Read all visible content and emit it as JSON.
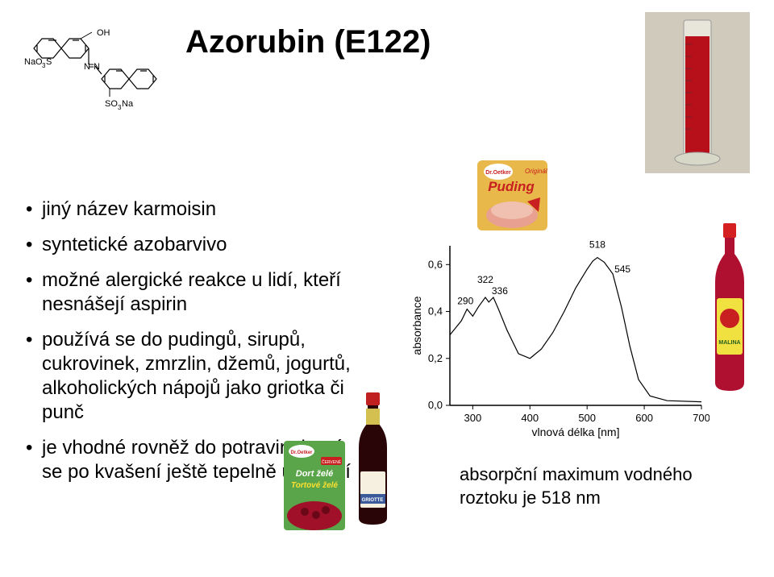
{
  "title": "Azorubin (E122)",
  "chem_labels": {
    "nao3s": "NaO",
    "sub3": "3",
    "s": "S",
    "oh": "OH",
    "nn": "N N",
    "so3na": "SO",
    "na": "Na"
  },
  "bullets": [
    "jiný název karmoisin",
    "syntetické azobarvivo",
    "možné alergické reakce u lidí, kteří nesnášejí aspirin",
    "používá se do pudingů, sirupů, cukrovinek, zmrzlin, džemů, jogurtů, alkoholických nápojů jako griotka či punč",
    "je vhodné rovněž do potravin, která se po kvašení ještě tepelně upravují"
  ],
  "caption": "absorpční maximum vodného roztoku je 518 nm",
  "chart": {
    "type": "line",
    "ylabel": "absorbance",
    "xlabel": "vlnová délka [nm]",
    "xlim": [
      260,
      700
    ],
    "ylim": [
      0,
      0.68
    ],
    "yticks": [
      0.0,
      0.2,
      0.4,
      0.6
    ],
    "xticks": [
      300,
      400,
      500,
      600,
      700
    ],
    "line_color": "#000000",
    "line_width": 1.2,
    "background_color": "#ffffff",
    "axis_color": "#000000",
    "label_fontsize": 14,
    "tick_fontsize": 13,
    "peaks": [
      {
        "x": 290,
        "label": "290"
      },
      {
        "x": 322,
        "label": "322"
      },
      {
        "x": 336,
        "label": "336"
      },
      {
        "x": 518,
        "label": "518"
      },
      {
        "x": 545,
        "label": "545"
      }
    ],
    "curve": [
      [
        260,
        0.3
      ],
      [
        270,
        0.33
      ],
      [
        280,
        0.36
      ],
      [
        290,
        0.41
      ],
      [
        300,
        0.38
      ],
      [
        310,
        0.42
      ],
      [
        322,
        0.46
      ],
      [
        328,
        0.44
      ],
      [
        336,
        0.46
      ],
      [
        345,
        0.41
      ],
      [
        360,
        0.32
      ],
      [
        380,
        0.22
      ],
      [
        400,
        0.2
      ],
      [
        420,
        0.24
      ],
      [
        440,
        0.31
      ],
      [
        460,
        0.4
      ],
      [
        480,
        0.5
      ],
      [
        500,
        0.58
      ],
      [
        510,
        0.615
      ],
      [
        518,
        0.63
      ],
      [
        530,
        0.61
      ],
      [
        545,
        0.56
      ],
      [
        560,
        0.42
      ],
      [
        575,
        0.25
      ],
      [
        590,
        0.11
      ],
      [
        610,
        0.04
      ],
      [
        640,
        0.02
      ],
      [
        700,
        0.015
      ]
    ]
  },
  "products": {
    "pudding": {
      "brand": "Dr.Oetker",
      "name": "Puding",
      "variant": "Originál",
      "pkg_bg": "#e8b84a",
      "accent": "#c82020"
    },
    "bottle": {
      "label": "MALINA",
      "cap": "#d42020",
      "liquid": "#b01030",
      "label_bg": "#f0e040"
    },
    "griotte": {
      "label": "GRIOTTE",
      "cap": "#c02020",
      "liquid": "#5a0d18",
      "label_bg": "#f5f0e0"
    },
    "zele": {
      "brand": "Dr.Oetker",
      "line1": "Dort želé",
      "line2": "Tortové želé",
      "variant": "ČERVENÉ",
      "pkg_bg": "#5aa54a"
    },
    "cylinder": {
      "liquid": "#b8101a",
      "glass": "#d8d8c8",
      "bg": "#cfcabb"
    }
  }
}
